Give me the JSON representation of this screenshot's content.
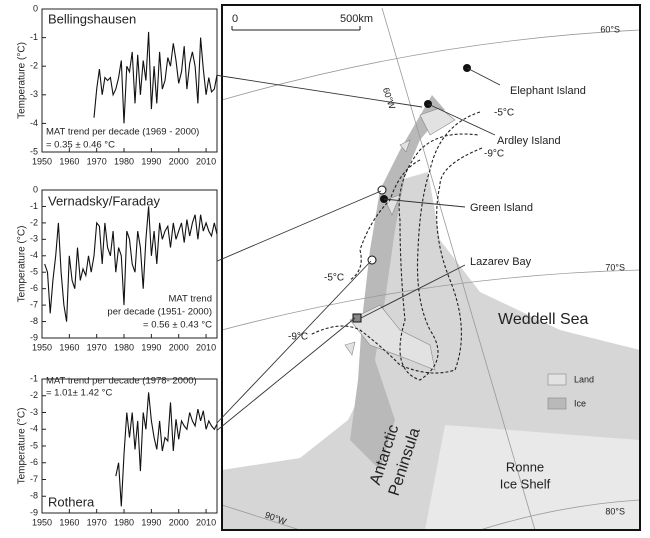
{
  "chart_data": [
    {
      "type": "line",
      "title": "Bellingshausen",
      "y_label": "Temperature (°C)",
      "annotations": [
        "MAT trend per decade (1969 - 2000)",
        "= 0.35 ± 0.46 °C"
      ],
      "x": [
        1969,
        1970,
        1971,
        1972,
        1973,
        1974,
        1975,
        1976,
        1977,
        1978,
        1979,
        1980,
        1981,
        1982,
        1983,
        1984,
        1985,
        1986,
        1987,
        1988,
        1989,
        1990,
        1991,
        1992,
        1993,
        1994,
        1995,
        1996,
        1997,
        1998,
        1999,
        2000,
        2001,
        2002,
        2003,
        2004,
        2005,
        2006,
        2007,
        2008,
        2009,
        2010,
        2011,
        2012,
        2013,
        2014
      ],
      "values": [
        -3.8,
        -2.8,
        -2.1,
        -3.0,
        -2.4,
        -2.5,
        -2.4,
        -3.0,
        -2.8,
        -2.4,
        -1.8,
        -4.0,
        -2.0,
        -2.2,
        -1.5,
        -3.3,
        -1.6,
        -3.0,
        -1.8,
        -2.5,
        -0.8,
        -3.5,
        -2.0,
        -3.3,
        -1.5,
        -2.8,
        -2.5,
        -1.7,
        -2.0,
        -1.2,
        -1.8,
        -2.6,
        -2.2,
        -1.3,
        -2.8,
        -1.9,
        -1.5,
        -2.0,
        -3.3,
        -1.0,
        -2.1,
        -3.0,
        -2.4,
        -2.9,
        -2.8,
        -2.3
      ],
      "color": "#111111",
      "xlim": [
        1950,
        2014
      ],
      "xticks": [
        1950,
        1960,
        1970,
        1980,
        1990,
        2000,
        2010
      ],
      "ylim": [
        -5,
        0
      ],
      "yticks": [
        0,
        -1,
        -2,
        -3,
        -4,
        -5
      ]
    },
    {
      "type": "line",
      "title": "Vernadsky/Faraday",
      "y_label": "Temperature (°C)",
      "annotations": [
        "MAT trend",
        "per decade (1951- 2000)",
        "= 0.56 ± 0.43 °C"
      ],
      "x": [
        1951,
        1952,
        1953,
        1954,
        1955,
        1956,
        1957,
        1958,
        1959,
        1960,
        1961,
        1962,
        1963,
        1964,
        1965,
        1966,
        1967,
        1968,
        1969,
        1970,
        1971,
        1972,
        1973,
        1974,
        1975,
        1976,
        1977,
        1978,
        1979,
        1980,
        1981,
        1982,
        1983,
        1984,
        1985,
        1986,
        1987,
        1988,
        1989,
        1990,
        1991,
        1992,
        1993,
        1994,
        1995,
        1996,
        1997,
        1998,
        1999,
        2000,
        2001,
        2002,
        2003,
        2004,
        2005,
        2006,
        2007,
        2008,
        2009,
        2010,
        2011,
        2012,
        2013,
        2014
      ],
      "values": [
        -4.5,
        -5.0,
        -7.5,
        -5.5,
        -4.0,
        -2.0,
        -5.0,
        -7.0,
        -8.0,
        -4.0,
        -5.5,
        -6.0,
        -3.5,
        -5.5,
        -4.8,
        -5.2,
        -4.0,
        -5.0,
        -4.0,
        -2.0,
        -2.2,
        -4.5,
        -2.0,
        -3.5,
        -4.0,
        -2.5,
        -5.0,
        -3.5,
        -4.0,
        -7.0,
        -2.5,
        -3.0,
        -4.5,
        -5.0,
        -2.5,
        -3.5,
        -6.0,
        -3.0,
        -1.0,
        -4.0,
        -2.5,
        -4.5,
        -2.0,
        -3.0,
        -2.5,
        -2.2,
        -3.5,
        -2.0,
        -3.0,
        -2.5,
        -2.0,
        -3.2,
        -1.8,
        -2.8,
        -2.0,
        -1.5,
        -3.0,
        -1.5,
        -2.5,
        -2.0,
        -2.5,
        -2.8,
        -2.0,
        -2.7
      ],
      "color": "#111111",
      "xlim": [
        1950,
        2014
      ],
      "xticks": [
        1950,
        1960,
        1970,
        1980,
        1990,
        2000,
        2010
      ],
      "ylim": [
        -9,
        0
      ],
      "yticks": [
        0,
        -1,
        -2,
        -3,
        -4,
        -5,
        -6,
        -7,
        -8,
        -9
      ]
    },
    {
      "type": "line",
      "title": "Rothera",
      "y_label": "Temperature (°C)",
      "annotations": [
        "MAT trend per decade (1978- 2000)",
        "= 1.01± 1.42 °C"
      ],
      "x": [
        1977,
        1978,
        1979,
        1980,
        1981,
        1982,
        1983,
        1984,
        1985,
        1986,
        1987,
        1988,
        1989,
        1990,
        1991,
        1992,
        1993,
        1994,
        1995,
        1996,
        1997,
        1998,
        1999,
        2000,
        2001,
        2002,
        2003,
        2004,
        2005,
        2006,
        2007,
        2008,
        2009,
        2010,
        2011,
        2012,
        2013,
        2014
      ],
      "values": [
        -6.8,
        -6.0,
        -8.6,
        -5.5,
        -3.0,
        -4.5,
        -3.0,
        -5.2,
        -3.5,
        -6.5,
        -3.0,
        -4.0,
        -1.8,
        -3.5,
        -4.5,
        -5.2,
        -3.5,
        -5.3,
        -4.5,
        -4.7,
        -2.4,
        -5.3,
        -3.4,
        -4.6,
        -3.5,
        -3.8,
        -4.0,
        -3.0,
        -3.5,
        -3.8,
        -2.8,
        -3.5,
        -2.9,
        -4.0,
        -3.5,
        -3.8,
        -4.0,
        -3.7
      ],
      "color": "#111111",
      "xlim": [
        1950,
        2014
      ],
      "xticks": [
        1950,
        1960,
        1970,
        1980,
        1990,
        2000,
        2010
      ],
      "ylim": [
        -9,
        -1
      ],
      "yticks": [
        -1,
        -2,
        -3,
        -4,
        -5,
        -6,
        -7,
        -8,
        -9
      ]
    }
  ],
  "map": {
    "scale_labels": [
      "0",
      "500km"
    ],
    "latitude_labels": [
      "60°S",
      "70°S",
      "80°S"
    ],
    "longitude_labels": [
      "60°W",
      "90°W"
    ],
    "places": [
      "Elephant Island",
      "Ardley Island",
      "Green Island",
      "Lazarev Bay"
    ],
    "isotherms": [
      "-5°C",
      "-9°C",
      "-5°C",
      "-9°C"
    ],
    "sea": "Weddell Sea",
    "peninsula": [
      "Antarctic",
      "Peninsula"
    ],
    "ice_shelf": [
      "Ronne",
      "Ice Shelf"
    ],
    "legend": [
      "Land",
      "Ice"
    ]
  }
}
